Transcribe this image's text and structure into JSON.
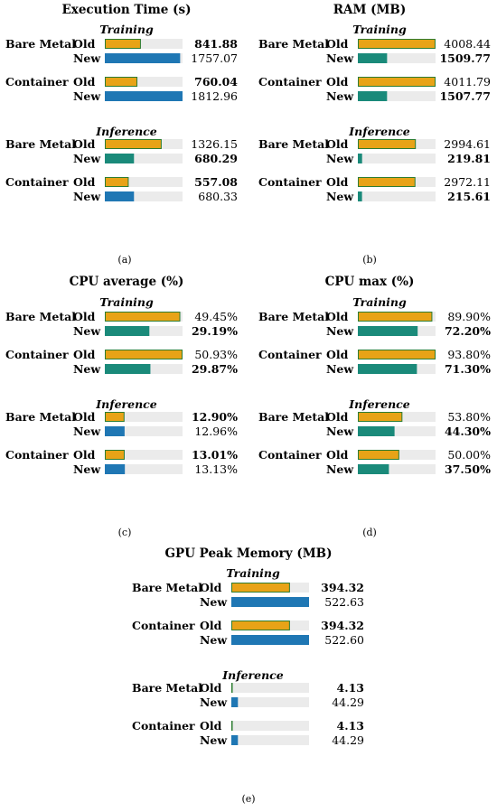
{
  "chart_data": [
    {
      "type": "bar",
      "title": "Execution Time (s)",
      "caption": "(a)",
      "max": 1812.96,
      "groups": [
        {
          "label": "Training",
          "rows": [
            {
              "env": "Bare Metal",
              "old": {
                "value": 841.88,
                "text": "841.88",
                "bold": true
              },
              "new": {
                "value": 1757.07,
                "text": "1757.07",
                "bold": false
              }
            },
            {
              "env": "Container",
              "old": {
                "value": 760.04,
                "text": "760.04",
                "bold": true
              },
              "new": {
                "value": 1812.96,
                "text": "1812.96",
                "bold": false
              }
            }
          ]
        },
        {
          "label": "Inference",
          "rows": [
            {
              "env": "Bare Metal",
              "old": {
                "value": 1326.15,
                "text": "1326.15",
                "bold": false
              },
              "new": {
                "value": 680.29,
                "text": "680.29",
                "bold": true
              }
            },
            {
              "env": "Container",
              "old": {
                "value": 557.08,
                "text": "557.08",
                "bold": true
              },
              "new": {
                "value": 680.33,
                "text": "680.33",
                "bold": false
              }
            }
          ]
        }
      ]
    },
    {
      "type": "bar",
      "title": "RAM (MB)",
      "caption": "(b)",
      "max": 4011.79,
      "groups": [
        {
          "label": "Training",
          "rows": [
            {
              "env": "Bare Metal",
              "old": {
                "value": 4008.44,
                "text": "4008.44",
                "bold": false
              },
              "new": {
                "value": 1509.77,
                "text": "1509.77",
                "bold": true
              }
            },
            {
              "env": "Container",
              "old": {
                "value": 4011.79,
                "text": "4011.79",
                "bold": false
              },
              "new": {
                "value": 1507.77,
                "text": "1507.77",
                "bold": true
              }
            }
          ]
        },
        {
          "label": "Inference",
          "rows": [
            {
              "env": "Bare Metal",
              "old": {
                "value": 2994.61,
                "text": "2994.61",
                "bold": false
              },
              "new": {
                "value": 219.81,
                "text": "219.81",
                "bold": true
              }
            },
            {
              "env": "Container",
              "old": {
                "value": 2972.11,
                "text": "2972.11",
                "bold": false
              },
              "new": {
                "value": 215.61,
                "text": "215.61",
                "bold": true
              }
            }
          ]
        }
      ]
    },
    {
      "type": "bar",
      "title": "CPU average (%)",
      "caption": "(c)",
      "max": 50.93,
      "groups": [
        {
          "label": "Training",
          "rows": [
            {
              "env": "Bare Metal",
              "old": {
                "value": 49.45,
                "text": "49.45%",
                "bold": false
              },
              "new": {
                "value": 29.19,
                "text": "29.19%",
                "bold": true
              }
            },
            {
              "env": "Container",
              "old": {
                "value": 50.93,
                "text": "50.93%",
                "bold": false
              },
              "new": {
                "value": 29.87,
                "text": "29.87%",
                "bold": true
              }
            }
          ]
        },
        {
          "label": "Inference",
          "rows": [
            {
              "env": "Bare Metal",
              "old": {
                "value": 12.9,
                "text": "12.90%",
                "bold": true
              },
              "new": {
                "value": 12.96,
                "text": "12.96%",
                "bold": false
              }
            },
            {
              "env": "Container",
              "old": {
                "value": 13.01,
                "text": "13.01%",
                "bold": true
              },
              "new": {
                "value": 13.13,
                "text": "13.13%",
                "bold": false
              }
            }
          ]
        }
      ]
    },
    {
      "type": "bar",
      "title": "CPU max (%)",
      "caption": "(d)",
      "max": 93.8,
      "groups": [
        {
          "label": "Training",
          "rows": [
            {
              "env": "Bare Metal",
              "old": {
                "value": 89.9,
                "text": "89.90%",
                "bold": false
              },
              "new": {
                "value": 72.2,
                "text": "72.20%",
                "bold": true
              }
            },
            {
              "env": "Container",
              "old": {
                "value": 93.8,
                "text": "93.80%",
                "bold": false
              },
              "new": {
                "value": 71.3,
                "text": "71.30%",
                "bold": true
              }
            }
          ]
        },
        {
          "label": "Inference",
          "rows": [
            {
              "env": "Bare Metal",
              "old": {
                "value": 53.8,
                "text": "53.80%",
                "bold": false
              },
              "new": {
                "value": 44.3,
                "text": "44.30%",
                "bold": true
              }
            },
            {
              "env": "Container",
              "old": {
                "value": 50.0,
                "text": "50.00%",
                "bold": false
              },
              "new": {
                "value": 37.5,
                "text": "37.50%",
                "bold": true
              }
            }
          ]
        }
      ]
    },
    {
      "type": "bar",
      "title": "GPU Peak Memory (MB)",
      "caption": "(e)",
      "max": 522.63,
      "groups": [
        {
          "label": "Training",
          "rows": [
            {
              "env": "Bare Metal",
              "old": {
                "value": 394.32,
                "text": "394.32",
                "bold": true
              },
              "new": {
                "value": 522.63,
                "text": "522.63",
                "bold": false
              }
            },
            {
              "env": "Container",
              "old": {
                "value": 394.32,
                "text": "394.32",
                "bold": true
              },
              "new": {
                "value": 522.6,
                "text": "522.60",
                "bold": false
              }
            }
          ]
        },
        {
          "label": "Inference",
          "rows": [
            {
              "env": "Bare Metal",
              "old": {
                "value": 4.13,
                "text": "4.13",
                "bold": true
              },
              "new": {
                "value": 44.29,
                "text": "44.29",
                "bold": false
              }
            },
            {
              "env": "Container",
              "old": {
                "value": 4.13,
                "text": "4.13",
                "bold": true
              },
              "new": {
                "value": 44.29,
                "text": "44.29",
                "bold": false
              }
            }
          ]
        }
      ]
    }
  ],
  "legend": {
    "old": "Old",
    "new": "New"
  },
  "colors": {
    "old": "#e8a317",
    "old_border": "#2e7d32",
    "new": "#1f77b4",
    "new_highlight": "#1a8a7a",
    "track": "#ebebeb"
  }
}
